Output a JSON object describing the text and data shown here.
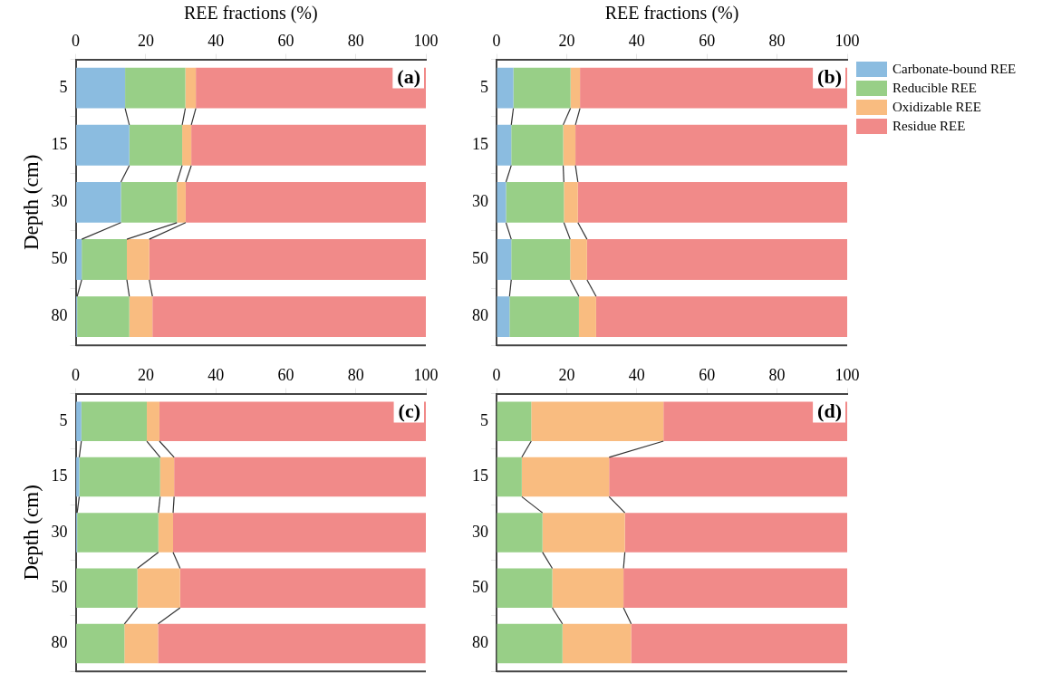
{
  "chart_data": [
    {
      "type": "bar",
      "orientation": "horizontal",
      "stacked": true,
      "xlabel": "REE fractions (%)",
      "ylabel": "Depth (cm)",
      "categories": [
        "5",
        "15",
        "30",
        "50",
        "80"
      ],
      "xlim": [
        0,
        100
      ],
      "xticks": [
        0,
        20,
        40,
        60,
        80,
        100
      ],
      "grid": false,
      "legend": false,
      "annotations": [
        "(a)"
      ],
      "series": [
        {
          "color": "#8bbce0",
          "values": [
            14.1,
            15.3,
            12.9,
            1.7,
            0.4
          ]
        },
        {
          "color": "#98cf87",
          "values": [
            17.2,
            15.1,
            16.0,
            12.9,
            14.9
          ]
        },
        {
          "color": "#f9bc80",
          "values": [
            3.0,
            2.6,
            2.5,
            6.4,
            6.6
          ]
        },
        {
          "color": "#f18a89",
          "values": [
            65.7,
            67.0,
            68.6,
            79.0,
            78.1
          ]
        }
      ]
    },
    {
      "type": "bar",
      "orientation": "horizontal",
      "stacked": true,
      "xlabel": "REE fractions (%)",
      "categories": [
        "5",
        "15",
        "30",
        "50",
        "80"
      ],
      "xlim": [
        0,
        100
      ],
      "xticks": [
        0,
        20,
        40,
        60,
        80,
        100
      ],
      "grid": false,
      "legend": "right",
      "annotations": [
        "(b)"
      ],
      "series": [
        {
          "name": "Carbonate-bound REE",
          "color": "#8bbce0",
          "values": [
            4.8,
            4.2,
            2.7,
            4.2,
            3.7
          ]
        },
        {
          "name": "Reducible REE",
          "color": "#98cf87",
          "values": [
            16.3,
            14.8,
            16.5,
            16.8,
            19.8
          ]
        },
        {
          "name": "Oxidizable REE",
          "color": "#f9bc80",
          "values": [
            2.7,
            3.5,
            4.0,
            4.8,
            4.9
          ]
        },
        {
          "name": "Residue REE",
          "color": "#f18a89",
          "values": [
            76.2,
            77.5,
            76.8,
            74.2,
            71.6
          ]
        }
      ]
    },
    {
      "type": "bar",
      "orientation": "horizontal",
      "stacked": true,
      "ylabel": "Depth (cm)",
      "categories": [
        "5",
        "15",
        "30",
        "50",
        "80"
      ],
      "xlim": [
        0,
        100
      ],
      "xticks": [
        0,
        20,
        40,
        60,
        80,
        100
      ],
      "grid": false,
      "legend": false,
      "annotations": [
        "(c)"
      ],
      "series": [
        {
          "color": "#8bbce0",
          "values": [
            1.6,
            1.0,
            0.4,
            0,
            0
          ]
        },
        {
          "color": "#98cf87",
          "values": [
            18.7,
            23.1,
            23.2,
            17.6,
            13.9
          ]
        },
        {
          "color": "#f9bc80",
          "values": [
            3.6,
            4.0,
            4.2,
            12.2,
            9.6
          ]
        },
        {
          "color": "#f18a89",
          "values": [
            76.1,
            71.9,
            72.2,
            70.1,
            76.4
          ]
        }
      ]
    },
    {
      "type": "bar",
      "orientation": "horizontal",
      "stacked": true,
      "categories": [
        "5",
        "15",
        "30",
        "50",
        "80"
      ],
      "xlim": [
        0,
        100
      ],
      "xticks": [
        0,
        20,
        40,
        60,
        80,
        100
      ],
      "grid": false,
      "legend": false,
      "annotations": [
        "(d)"
      ],
      "series": [
        {
          "color": "#8bbce0",
          "values": [
            0,
            0,
            0,
            0,
            0
          ]
        },
        {
          "color": "#98cf87",
          "values": [
            9.9,
            7.2,
            13.1,
            15.9,
            18.8
          ]
        },
        {
          "color": "#f9bc80",
          "values": [
            37.7,
            24.9,
            23.5,
            20.3,
            19.6
          ]
        },
        {
          "color": "#f18a89",
          "values": [
            52.4,
            67.9,
            63.4,
            63.8,
            61.6
          ]
        }
      ]
    }
  ]
}
